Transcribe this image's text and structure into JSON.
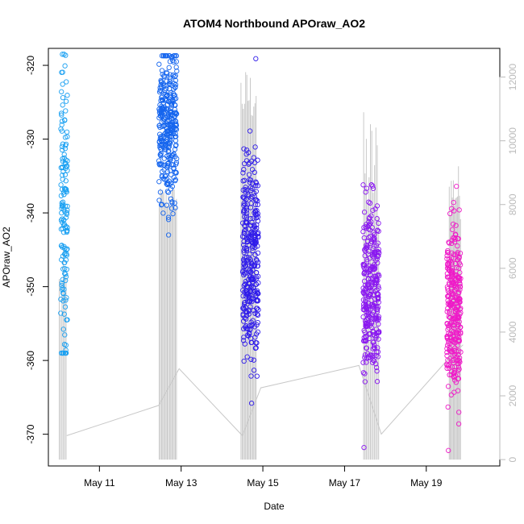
{
  "colors": {
    "trace": "#c8c8c8",
    "right_axis": "#bbbbbb",
    "cluster_1": "#1aa0f2",
    "cluster_2": "#1565ee",
    "cluster_3": "#2f1bea",
    "cluster_4": "#8a18f0",
    "cluster_5": "#ef1ac8"
  },
  "chart_data": {
    "type": "scatter",
    "title": "ATOM4 Northbound APOraw_AO2",
    "xlabel": "Date",
    "ylabel": "APOraw_AO2",
    "x_ticks": [
      {
        "label": "May 11",
        "day": 11
      },
      {
        "label": "May 13",
        "day": 13
      },
      {
        "label": "May 15",
        "day": 15
      },
      {
        "label": "May 17",
        "day": 17
      },
      {
        "label": "May 19",
        "day": 19
      }
    ],
    "xlim_days": [
      9.75,
      20.8
    ],
    "y_left": {
      "lim": [
        -374.3,
        -317.7
      ],
      "ticks": [
        -320,
        -330,
        -340,
        -350,
        -360,
        -370
      ]
    },
    "y_right": {
      "lim": [
        -200,
        12900
      ],
      "ticks": [
        0,
        2000,
        4000,
        6000,
        8000,
        10000,
        12000
      ]
    },
    "grid": false,
    "point_clusters": [
      {
        "day_start": 10.05,
        "day_end": 10.22,
        "y_min": -359,
        "y_max": -318.5,
        "count": 150,
        "center": -341,
        "spread": 10,
        "color_key": "cluster_1"
      },
      {
        "day_start": 12.45,
        "day_end": 12.9,
        "y_min": -343,
        "y_max": -318.7,
        "count": 330,
        "center": -328,
        "spread": 5,
        "color_key": "cluster_2"
      },
      {
        "day_start": 14.5,
        "day_end": 14.9,
        "y_min": -365.8,
        "y_max": -319.1,
        "count": 330,
        "center": -347,
        "spread": 7,
        "color_key": "cluster_3"
      },
      {
        "day_start": 17.45,
        "day_end": 17.85,
        "y_min": -371.8,
        "y_max": -336.2,
        "count": 310,
        "center": -350,
        "spread": 6,
        "color_key": "cluster_4"
      },
      {
        "day_start": 19.5,
        "day_end": 19.85,
        "y_min": -372.2,
        "y_max": -336.4,
        "count": 310,
        "center": -353,
        "spread": 6,
        "color_key": "cluster_5"
      }
    ],
    "trace_baseline": [
      {
        "day": 10.2,
        "value": 750
      },
      {
        "day": 12.45,
        "value": 1700
      },
      {
        "day": 12.95,
        "value": 2850
      },
      {
        "day": 14.5,
        "value": 750
      },
      {
        "day": 14.95,
        "value": 2250
      },
      {
        "day": 17.35,
        "value": 2950
      },
      {
        "day": 17.9,
        "value": 800
      },
      {
        "day": 19.5,
        "value": 3100
      },
      {
        "day": 19.9,
        "value": 3600
      }
    ],
    "trace_spike_groups": [
      {
        "day_start": 10.0,
        "day_end": 10.2,
        "count": 6,
        "top_min": 3500,
        "top_max": 6800
      },
      {
        "day_start": 12.45,
        "day_end": 12.9,
        "count": 16,
        "top_min": 7800,
        "top_max": 8600
      },
      {
        "day_start": 14.45,
        "day_end": 14.85,
        "count": 14,
        "top_min": 10500,
        "top_max": 12300
      },
      {
        "day_start": 17.45,
        "day_end": 17.85,
        "count": 12,
        "top_min": 7200,
        "top_max": 11000
      },
      {
        "day_start": 19.55,
        "day_end": 19.85,
        "count": 12,
        "top_min": 7500,
        "top_max": 9300
      }
    ]
  }
}
